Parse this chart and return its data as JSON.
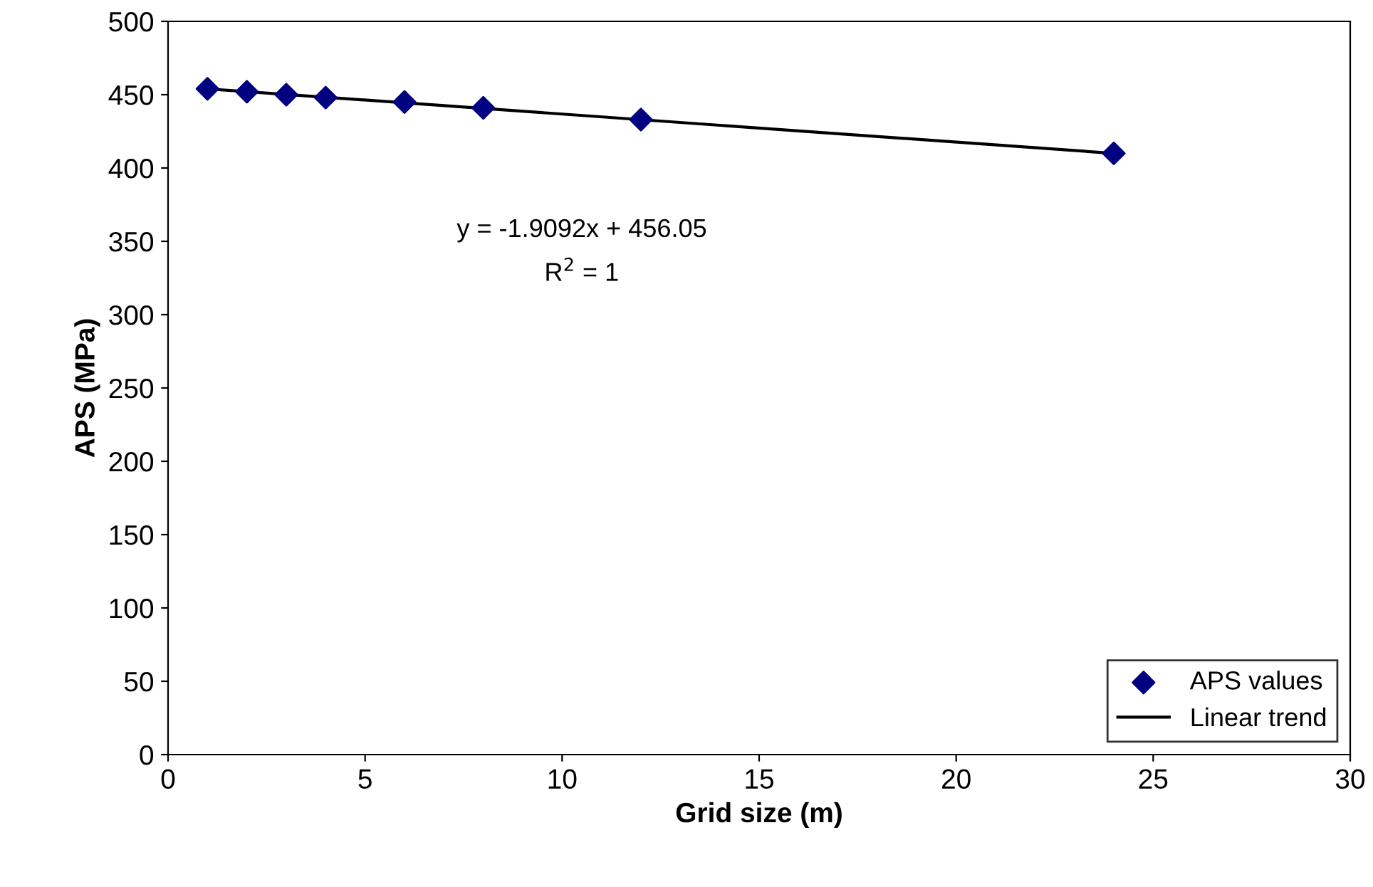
{
  "chart_data": {
    "type": "scatter",
    "xlabel": "Grid size (m)",
    "ylabel": "APS (MPa)",
    "xlim": [
      0,
      30
    ],
    "xticks": [
      0,
      5,
      10,
      15,
      20,
      25,
      30
    ],
    "ylim": [
      0,
      500
    ],
    "yticks": [
      0,
      50,
      100,
      150,
      200,
      250,
      300,
      350,
      400,
      450,
      500
    ],
    "grid": false,
    "legend": "bottom right",
    "marker": "diamond",
    "series": [
      {
        "name": "APS values",
        "color": "#000080",
        "x": [
          1,
          2,
          3,
          4,
          6,
          8,
          12,
          24
        ],
        "values": [
          454,
          452,
          450,
          448,
          445,
          441,
          433,
          410
        ]
      },
      {
        "name": "Linear trend",
        "type": "line",
        "color": "#000000",
        "line_style": "solid",
        "marker": "none",
        "x": [
          1,
          24
        ],
        "values": [
          454,
          410
        ]
      }
    ],
    "annotations": [
      "y = -1.9092x + 456.05",
      "R$^{2}$ = 1"
    ]
  }
}
